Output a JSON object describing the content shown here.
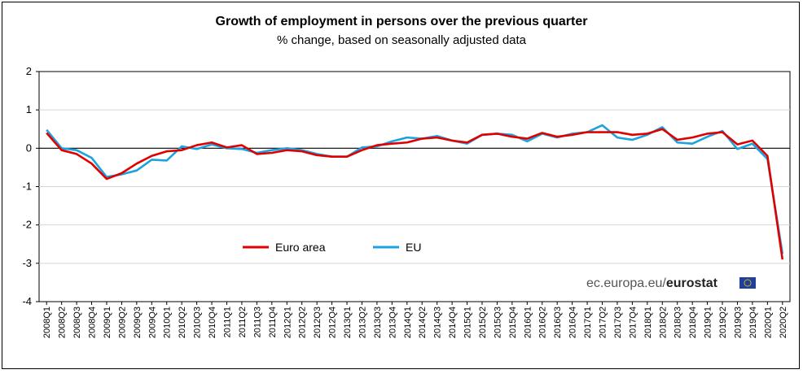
{
  "chart_data": {
    "type": "line",
    "title": "Growth of employment in persons over the previous quarter",
    "subtitle": "% change, based on seasonally adjusted data",
    "xlabel": "",
    "ylabel": "",
    "ylim": [
      -4,
      2
    ],
    "yticks": [
      "2",
      "1",
      "0",
      "-1",
      "-2",
      "-3",
      "-4"
    ],
    "grid": true,
    "legend_position": "lower-left",
    "categories": [
      "2008Q1",
      "2008Q2",
      "2008Q3",
      "2008Q4",
      "2009Q1",
      "2009Q2",
      "2009Q3",
      "2009Q4",
      "2010Q1",
      "2010Q2",
      "2010Q3",
      "2010Q4",
      "2011Q1",
      "2011Q2",
      "2011Q3",
      "2011Q4",
      "2012Q1",
      "2012Q2",
      "2012Q3",
      "2012Q4",
      "2013Q1",
      "2013Q2",
      "2013Q3",
      "2013Q4",
      "2014Q1",
      "2014Q2",
      "2014Q3",
      "2014Q4",
      "2015Q1",
      "2015Q2",
      "2015Q3",
      "2015Q4",
      "2016Q1",
      "2016Q2",
      "2016Q3",
      "2016Q4",
      "2017Q1",
      "2017Q2",
      "2017Q3",
      "2017Q4",
      "2018Q1",
      "2018Q2",
      "2018Q3",
      "2018Q4",
      "2019Q1",
      "2019Q2",
      "2019Q3",
      "2019Q4",
      "2020Q1",
      "2020Q2"
    ],
    "series": [
      {
        "name": "Euro area",
        "color": "#e00000",
        "values": [
          0.4,
          -0.05,
          -0.15,
          -0.4,
          -0.8,
          -0.65,
          -0.4,
          -0.2,
          -0.08,
          -0.05,
          0.08,
          0.15,
          0.02,
          0.08,
          -0.15,
          -0.12,
          -0.05,
          -0.08,
          -0.18,
          -0.22,
          -0.22,
          -0.05,
          0.08,
          0.12,
          0.15,
          0.25,
          0.28,
          0.2,
          0.15,
          0.35,
          0.38,
          0.3,
          0.25,
          0.4,
          0.3,
          0.35,
          0.42,
          0.42,
          0.42,
          0.35,
          0.38,
          0.5,
          0.22,
          0.28,
          0.38,
          0.42,
          0.1,
          0.2,
          -0.2,
          -2.9
        ]
      },
      {
        "name": "EU",
        "color": "#1aa3e0",
        "values": [
          0.48,
          0.0,
          -0.05,
          -0.25,
          -0.75,
          -0.68,
          -0.58,
          -0.3,
          -0.32,
          0.05,
          -0.02,
          0.1,
          0.0,
          -0.02,
          -0.12,
          -0.05,
          0.0,
          -0.05,
          -0.15,
          -0.22,
          -0.22,
          0.02,
          0.05,
          0.18,
          0.28,
          0.25,
          0.32,
          0.2,
          0.12,
          0.35,
          0.38,
          0.35,
          0.18,
          0.38,
          0.28,
          0.38,
          0.42,
          0.6,
          0.28,
          0.22,
          0.35,
          0.55,
          0.15,
          0.12,
          0.3,
          0.45,
          -0.02,
          0.12,
          -0.28,
          -2.75
        ]
      }
    ]
  },
  "source": {
    "prefix": "ec.europa.eu/",
    "brand": "eurostat"
  }
}
